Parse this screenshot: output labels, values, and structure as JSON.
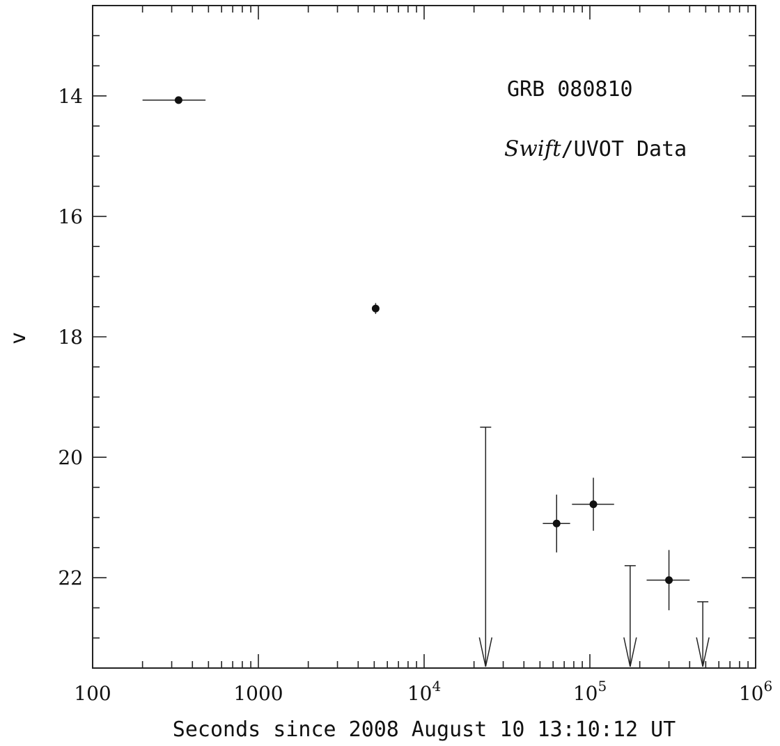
{
  "chart_data": {
    "type": "scatter",
    "xscale": "log",
    "xlim": [
      100,
      1000000
    ],
    "ylim": [
      23.5,
      12.5
    ],
    "yaxis_inverted": true,
    "xlabel": "Seconds since 2008 August 10 13:10:12 UT",
    "ylabel": "v",
    "x_ticks": [
      {
        "value": 100,
        "label": "100",
        "sup": ""
      },
      {
        "value": 1000,
        "label": "1000",
        "sup": ""
      },
      {
        "value": 10000,
        "label": "10",
        "sup": "4"
      },
      {
        "value": 100000,
        "label": "10",
        "sup": "5"
      },
      {
        "value": 1000000,
        "label": "10",
        "sup": "6"
      }
    ],
    "y_ticks": [
      14,
      16,
      18,
      20,
      22
    ],
    "annotations": {
      "line1": "GRB 080810",
      "line2_italic": "Swift",
      "line2_rest": "/UVOT Data"
    },
    "series": [
      {
        "kind": "detections",
        "points": [
          {
            "x": 330,
            "y": 14.07,
            "x_lo": 200,
            "x_hi": 480,
            "y_err": 0.03
          },
          {
            "x": 5100,
            "y": 17.53,
            "x_lo": 4950,
            "x_hi": 5250,
            "y_err": 0.09
          },
          {
            "x": 63000,
            "y": 21.1,
            "x_lo": 52000,
            "x_hi": 76000,
            "y_err": 0.48
          },
          {
            "x": 105000,
            "y": 20.78,
            "x_lo": 78000,
            "x_hi": 140000,
            "y_err": 0.44
          },
          {
            "x": 300000,
            "y": 22.04,
            "x_lo": 220000,
            "x_hi": 400000,
            "y_err": 0.5
          }
        ]
      },
      {
        "kind": "upper_limits",
        "points": [
          {
            "x": 23500,
            "y": 19.5
          },
          {
            "x": 175000,
            "y": 21.8
          },
          {
            "x": 480000,
            "y": 22.4
          }
        ]
      }
    ]
  }
}
